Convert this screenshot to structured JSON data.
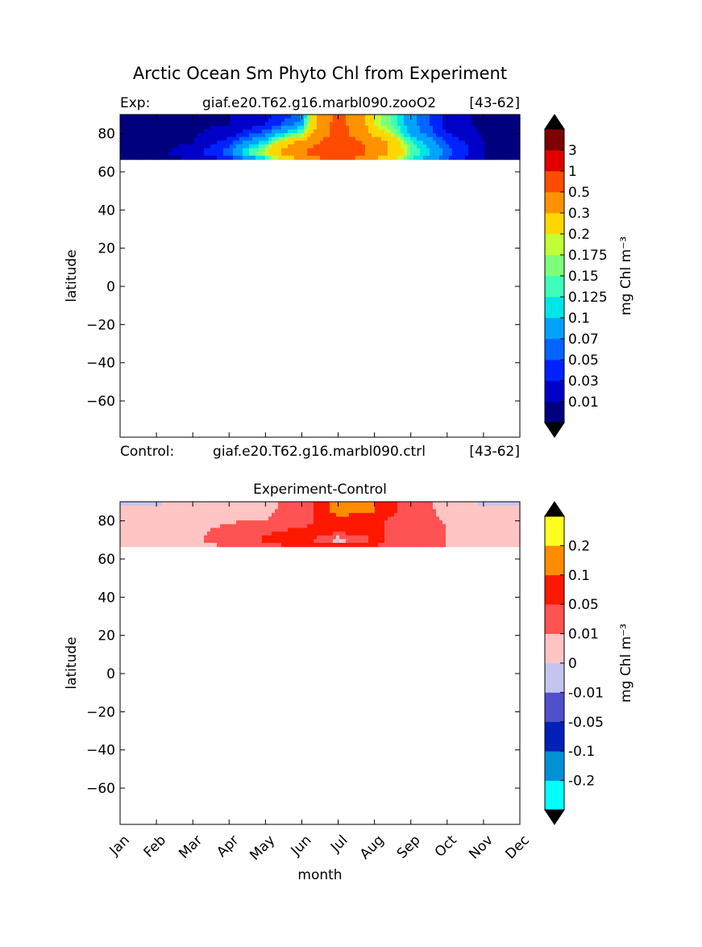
{
  "figure": {
    "title": "Arctic Ocean Sm Phyto Chl from Experiment"
  },
  "chart_data": [
    {
      "type": "heatmap",
      "panel": "experiment",
      "left_title": "Exp:",
      "center_title": "giaf.e20.T62.g16.marbl090.zooO2",
      "right_title": "[43-62]",
      "xlabel": "",
      "ylabel": "latitude",
      "ylim": [
        -79,
        90
      ],
      "yticks": [
        "80",
        "60",
        "40",
        "20",
        "0",
        "−20",
        "−40",
        "−60"
      ],
      "ytick_values": [
        80,
        60,
        40,
        20,
        0,
        -20,
        -40,
        -60
      ],
      "xlim": [
        0,
        11
      ],
      "x_tick_positions": [
        0,
        1,
        2,
        3,
        4,
        5,
        6,
        7,
        8,
        9,
        10,
        11
      ],
      "lat": [
        66.5,
        70,
        75,
        80,
        85,
        90
      ],
      "months": [
        "Jan",
        "Feb",
        "Mar",
        "Apr",
        "May",
        "Jun",
        "Jul",
        "Aug",
        "Sep",
        "Oct",
        "Nov",
        "Dec"
      ],
      "z": [
        [
          0.005,
          0.005,
          0.01,
          0.03,
          0.1,
          0.3,
          0.6,
          0.3,
          0.12,
          0.05,
          0.01,
          0.005
        ],
        [
          0.005,
          0.005,
          0.02,
          0.06,
          0.2,
          0.5,
          0.8,
          0.4,
          0.15,
          0.06,
          0.01,
          0.005
        ],
        [
          0.005,
          0.005,
          0.01,
          0.04,
          0.12,
          0.35,
          0.7,
          0.4,
          0.13,
          0.05,
          0.01,
          0.005
        ],
        [
          0.005,
          0.005,
          0.008,
          0.02,
          0.06,
          0.15,
          0.6,
          0.25,
          0.09,
          0.03,
          0.008,
          0.005
        ],
        [
          0.005,
          0.005,
          0.005,
          0.01,
          0.03,
          0.08,
          0.6,
          0.2,
          0.08,
          0.02,
          0.005,
          0.005
        ],
        [
          0.005,
          0.005,
          0.005,
          0.01,
          0.02,
          0.06,
          0.6,
          0.2,
          0.08,
          0.02,
          0.005,
          0.005
        ]
      ],
      "colorbar": {
        "label": "mg Chl m⁻³",
        "levels": [
          "0.01",
          "0.03",
          "0.05",
          "0.07",
          "0.1",
          "0.125",
          "0.15",
          "0.175",
          "0.2",
          "0.3",
          "0.5",
          "1",
          "3"
        ],
        "level_values": [
          0.01,
          0.03,
          0.05,
          0.07,
          0.1,
          0.125,
          0.15,
          0.175,
          0.2,
          0.3,
          0.5,
          1,
          3
        ],
        "colors": [
          "#00007f",
          "#0000c8",
          "#0022ff",
          "#0066ff",
          "#00a2ff",
          "#00e5e5",
          "#3dffb9",
          "#7dff7a",
          "#c1ff36",
          "#ffd700",
          "#ff9200",
          "#ff4c00",
          "#e10000",
          "#7f0000"
        ],
        "under_color": "#000000",
        "over_color": "#000000"
      }
    },
    {
      "type": "heatmap",
      "panel": "difference",
      "left_title": "Control:",
      "center_title": "giaf.e20.T62.g16.marbl090.ctrl",
      "right_title": "[43-62]",
      "subtitle": "Experiment-Control",
      "xlabel": "month",
      "ylabel": "latitude",
      "ylim": [
        -79,
        90
      ],
      "yticks": [
        "80",
        "60",
        "40",
        "20",
        "0",
        "−20",
        "−40",
        "−60"
      ],
      "ytick_values": [
        80,
        60,
        40,
        20,
        0,
        -20,
        -40,
        -60
      ],
      "xlim": [
        0,
        11
      ],
      "categories": [
        "Jan",
        "Feb",
        "Mar",
        "Apr",
        "May",
        "Jun",
        "Jul",
        "Aug",
        "Sep",
        "Oct",
        "Nov",
        "Dec"
      ],
      "lat": [
        66.5,
        70,
        75,
        80,
        85,
        90
      ],
      "months": [
        "Jan",
        "Feb",
        "Mar",
        "Apr",
        "May",
        "Jun",
        "Jul",
        "Aug",
        "Sep",
        "Oct",
        "Nov",
        "Dec"
      ],
      "z": [
        [
          0.005,
          0.005,
          0.005,
          0.01,
          0.03,
          0.06,
          0.08,
          0.05,
          0.02,
          0.01,
          0.005,
          0.005
        ],
        [
          0.005,
          0.005,
          0.006,
          0.02,
          0.06,
          0.08,
          -0.02,
          0.06,
          0.03,
          0.01,
          0.005,
          0.005
        ],
        [
          0.005,
          0.005,
          0.005,
          0.015,
          0.04,
          0.06,
          0.08,
          0.06,
          0.02,
          0.01,
          0.005,
          0.005
        ],
        [
          0.005,
          0.005,
          0.005,
          0.008,
          0.01,
          0.03,
          0.08,
          0.06,
          0.02,
          0.008,
          0.005,
          0.005
        ],
        [
          0.004,
          0.004,
          0.004,
          0.005,
          0.006,
          0.02,
          0.12,
          0.1,
          0.02,
          0.005,
          0.004,
          0.004
        ],
        [
          -0.002,
          -0.002,
          0.004,
          0.004,
          0.005,
          0.02,
          0.12,
          0.1,
          0.02,
          0.004,
          -0.002,
          -0.002
        ]
      ],
      "colorbar": {
        "label": "mg Chl m⁻³",
        "levels": [
          "-0.2",
          "-0.1",
          "-0.05",
          "-0.01",
          "0",
          "0.01",
          "0.05",
          "0.1",
          "0.2"
        ],
        "level_values": [
          -0.2,
          -0.1,
          -0.05,
          -0.01,
          0,
          0.01,
          0.05,
          0.1,
          0.2
        ],
        "colors": [
          "#00ffff",
          "#0090d5",
          "#0020b8",
          "#5050cc",
          "#c4c4f0",
          "#ffc4c4",
          "#ff5252",
          "#ff1800",
          "#ff8c00",
          "#ffff20"
        ],
        "under_color": "#000000",
        "over_color": "#000000"
      }
    }
  ]
}
